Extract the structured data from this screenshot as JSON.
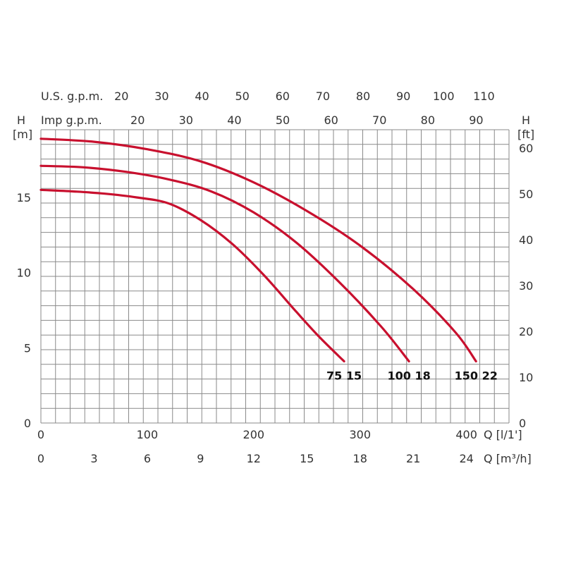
{
  "chart_data": {
    "type": "line",
    "colors": {
      "curve": "#c8102e",
      "grid": "#8a8a8a",
      "text": "#333333"
    },
    "axes": {
      "left": {
        "name": "H",
        "unit": "[m]",
        "ticks": [
          0,
          5,
          10,
          15
        ],
        "ylim": [
          0,
          19.5
        ]
      },
      "right": {
        "name": "H",
        "unit": "[ft]",
        "ticks": [
          0,
          10,
          20,
          30,
          40,
          50,
          60
        ]
      },
      "bottom_lpm": {
        "unit": "Q [l/1']",
        "ticks": [
          0,
          100,
          200,
          300,
          400
        ],
        "xlim": [
          0,
          440
        ]
      },
      "bottom_m3h": {
        "unit": "Q [m³/h]",
        "ticks": [
          0,
          3,
          6,
          9,
          12,
          15,
          18,
          21,
          24
        ]
      },
      "top_us": {
        "label": "U.S. g.p.m.",
        "ticks": [
          20,
          30,
          40,
          50,
          60,
          70,
          80,
          90,
          100,
          110
        ]
      },
      "top_imp": {
        "label": "Imp g.p.m.",
        "ticks": [
          20,
          30,
          40,
          50,
          60,
          70,
          80,
          90
        ]
      }
    },
    "grid": true,
    "series": [
      {
        "name": "75 15",
        "x": [
          0,
          30,
          60,
          90,
          120,
          150,
          180,
          210,
          240,
          262,
          285
        ],
        "y": [
          15.5,
          15.4,
          15.25,
          15.0,
          14.6,
          13.5,
          11.9,
          9.8,
          7.4,
          5.7,
          4.1
        ]
      },
      {
        "name": "100 18",
        "x": [
          0,
          40,
          80,
          120,
          160,
          200,
          240,
          280,
          320,
          346
        ],
        "y": [
          17.1,
          17.0,
          16.7,
          16.2,
          15.4,
          14.0,
          12.0,
          9.4,
          6.4,
          4.1
        ]
      },
      {
        "name": "150 22",
        "x": [
          0,
          50,
          100,
          150,
          200,
          250,
          300,
          350,
          390,
          409
        ],
        "y": [
          18.9,
          18.7,
          18.2,
          17.4,
          16.0,
          14.1,
          11.8,
          8.9,
          6.0,
          4.1
        ]
      }
    ]
  }
}
